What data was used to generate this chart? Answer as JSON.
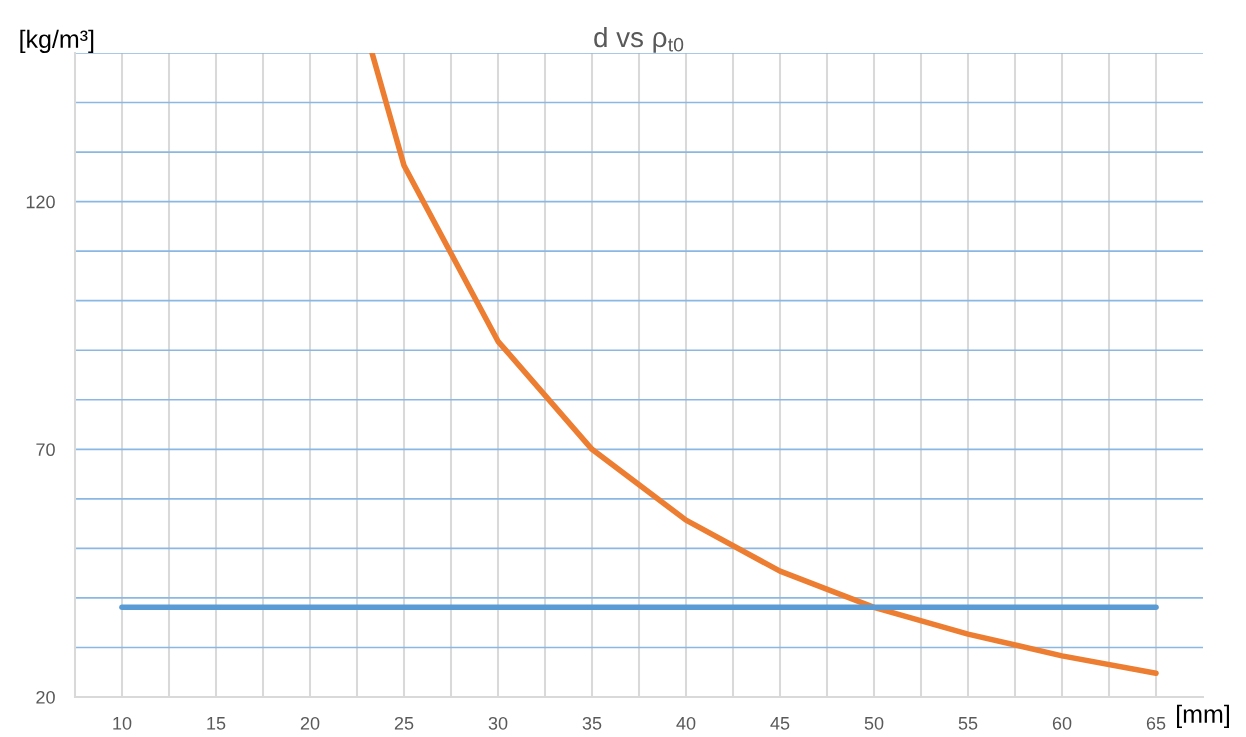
{
  "chart_data": {
    "type": "line",
    "title": "d vs ρ$_{t0}$",
    "xlabel": "[mm]",
    "ylabel": "[kg/m³]",
    "xlim": [
      7.5,
      67.5
    ],
    "xticks": [
      10,
      {
        "value": 12.5,
        "label": null
      },
      15,
      {
        "value": 17.5,
        "label": null
      },
      20,
      {
        "value": 22.5,
        "label": null
      },
      25,
      {
        "value": 27.5,
        "label": null
      },
      30,
      {
        "value": 32.5,
        "label": null
      },
      35,
      {
        "value": 37.5,
        "label": null
      },
      40,
      {
        "value": 42.5,
        "label": null
      },
      45,
      {
        "value": 47.5,
        "label": null
      },
      50,
      {
        "value": 52.5,
        "label": null
      },
      55,
      {
        "value": 57.5,
        "label": null
      },
      60,
      {
        "value": 62.5,
        "label": null
      },
      65
    ],
    "ylim": [
      20,
      150
    ],
    "yticks": [
      20,
      {
        "value": 30,
        "label": null
      },
      {
        "value": 40,
        "label": null
      },
      {
        "value": 50,
        "label": null
      },
      {
        "value": 60,
        "label": null
      },
      70,
      {
        "value": 80,
        "label": null
      },
      {
        "value": 90,
        "label": null
      },
      {
        "value": 100,
        "label": null
      },
      {
        "value": 110,
        "label": null
      },
      120,
      {
        "value": 130,
        "label": null
      },
      {
        "value": 140,
        "label": null
      },
      {
        "value": 150,
        "label": null
      }
    ],
    "grid": true,
    "marker": "none",
    "line_style": "solid",
    "series": [
      {
        "color": "#ed7d31",
        "x": [
          23.3,
          25,
          30,
          35,
          40,
          45,
          50,
          55,
          60,
          65
        ],
        "values": [
          150,
          127.3,
          91.8,
          70,
          55.7,
          45.4,
          38.1,
          32.7,
          28.3,
          24.8
        ]
      },
      {
        "color": "#5b9bd5",
        "x": [
          10,
          65
        ],
        "values": [
          38.1,
          38.1
        ]
      }
    ]
  }
}
